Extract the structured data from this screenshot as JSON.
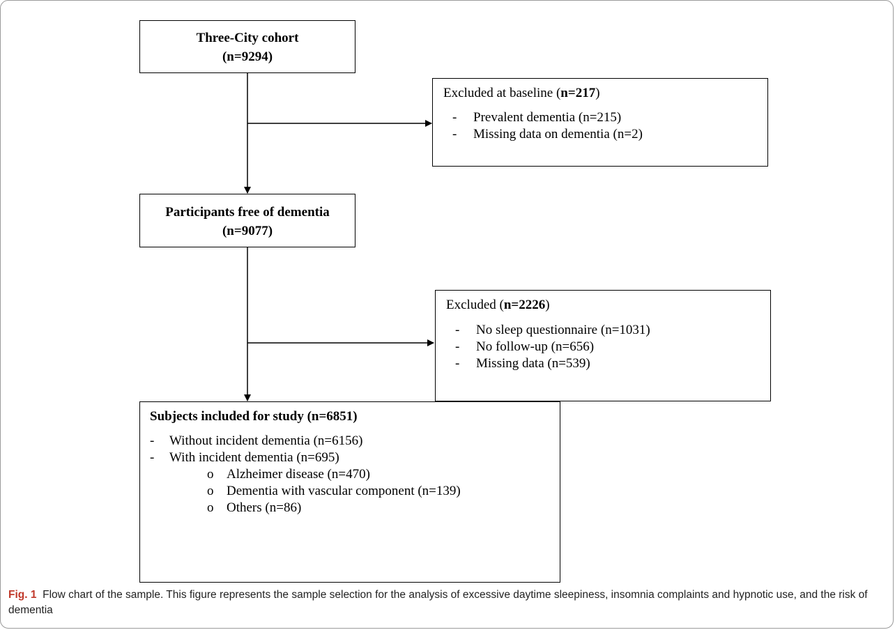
{
  "nodes": {
    "cohort": {
      "title": "Three-City cohort",
      "count": "(n=9294)"
    },
    "excluded_baseline": {
      "heading_prefix": "Excluded at baseline (",
      "heading_bold": "n=217",
      "heading_suffix": ")",
      "items": [
        "Prevalent dementia (n=215)",
        "Missing data on dementia (n=2)"
      ]
    },
    "free": {
      "title": "Participants free of dementia",
      "count": "(n=9077)"
    },
    "excluded_followup": {
      "heading_prefix": "Excluded (",
      "heading_bold": "n=2226",
      "heading_suffix": ")",
      "items": [
        "No sleep questionnaire (n=1031)",
        "No follow-up (n=656)",
        "Missing data (n=539)"
      ]
    },
    "included": {
      "heading": "Subjects included for study (n=6851)",
      "items": [
        "Without incident dementia (n=6156)",
        "With incident dementia (n=695)"
      ],
      "subitems": [
        "Alzheimer disease (n=470)",
        "Dementia with vascular component (n=139)",
        "Others (n=86)"
      ]
    }
  },
  "markers": {
    "dash": "-",
    "circle": "o"
  },
  "caption": {
    "label": "Fig. 1",
    "text": "Flow chart of the sample. This figure represents the sample selection for the analysis of excessive daytime sleepiness, insomnia complaints and hypnotic use, and the risk of dementia"
  }
}
